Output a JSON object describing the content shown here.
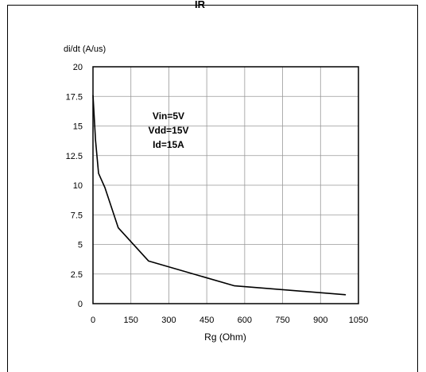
{
  "header_fragment": "IR",
  "chart_data": {
    "type": "line",
    "title": "",
    "xlabel": "Rg (Ohm)",
    "ylabel": "di/dt (A/us)",
    "xlim": [
      0,
      1050
    ],
    "ylim": [
      0,
      20
    ],
    "x_ticks": [
      0,
      150,
      300,
      450,
      600,
      750,
      900,
      1050
    ],
    "y_ticks": [
      0,
      2.5,
      5,
      7.5,
      10,
      12.5,
      15,
      17.5,
      20
    ],
    "x_tick_labels": [
      "0",
      "150",
      "300",
      "450",
      "600",
      "750",
      "900",
      "1050"
    ],
    "y_tick_labels": [
      "0",
      "2.5",
      "5",
      "7.5",
      "10",
      "12.5",
      "15",
      "17.5",
      "20"
    ],
    "grid": true,
    "annotation": [
      "Vin=5V",
      "Vdd=15V",
      "Id=15A"
    ],
    "series": [
      {
        "x": [
          0,
          10,
          22,
          47,
          100,
          220,
          560,
          1000
        ],
        "y": [
          17.6,
          13.8,
          11.0,
          9.8,
          6.4,
          3.6,
          1.5,
          0.75
        ]
      }
    ]
  }
}
